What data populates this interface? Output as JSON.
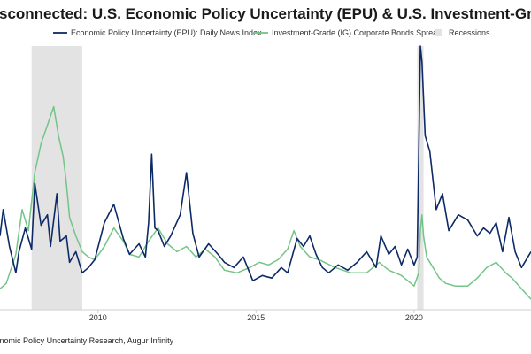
{
  "chart_data": {
    "type": "line",
    "title": "Disconnected: U.S. Economic Policy Uncertainty (EPU) & U.S. Investment-Grade (IG) Corporate Bonds Spread",
    "source": "Source: Bloomberg, Economic Policy Uncertainty Research, Augur Infinity",
    "xlabel": "",
    "ylabel": "",
    "xlim": [
      2006.9,
      2023.7
    ],
    "ylim": [
      0,
      100
    ],
    "y_scale": "normalized index (no visible axis)",
    "x_ticks": [
      "2010",
      "2015",
      "2020"
    ],
    "x_tick_values": [
      2010,
      2015,
      2020
    ],
    "legend": {
      "placement": "top-center",
      "entries": [
        {
          "name": "Economic Policy Uncertainty (EPU): Daily News Index",
          "color": "#0d2a66",
          "kind": "line"
        },
        {
          "name": "Investment-Grade (IG) Corporate Bonds Spread",
          "color": "#74c487",
          "kind": "line"
        },
        {
          "name": "Recessions",
          "color": "#e3e3e3",
          "kind": "box"
        }
      ]
    },
    "recessions": [
      {
        "start": 2007.9,
        "end": 2009.5
      },
      {
        "start": 2020.1,
        "end": 2020.3
      }
    ],
    "series": [
      {
        "name": "Economic Policy Uncertainty (EPU): Daily News Index",
        "color": "#0d2a66",
        "x": [
          2006.9,
          2007.0,
          2007.2,
          2007.4,
          2007.5,
          2007.7,
          2007.9,
          2008.0,
          2008.2,
          2008.4,
          2008.5,
          2008.7,
          2008.8,
          2009.0,
          2009.1,
          2009.3,
          2009.5,
          2009.7,
          2009.9,
          2010.2,
          2010.5,
          2010.8,
          2011.0,
          2011.3,
          2011.5,
          2011.6,
          2011.7,
          2011.8,
          2011.9,
          2012.1,
          2012.3,
          2012.6,
          2012.8,
          2013.0,
          2013.2,
          2013.5,
          2013.8,
          2014.0,
          2014.3,
          2014.6,
          2014.9,
          2015.2,
          2015.5,
          2015.8,
          2016.0,
          2016.3,
          2016.5,
          2016.7,
          2016.9,
          2017.1,
          2017.3,
          2017.6,
          2017.9,
          2018.2,
          2018.5,
          2018.8,
          2018.95,
          2019.2,
          2019.4,
          2019.6,
          2019.8,
          2020.0,
          2020.1,
          2020.2,
          2020.25,
          2020.35,
          2020.5,
          2020.7,
          2020.9,
          2021.1,
          2021.4,
          2021.7,
          2022.0,
          2022.2,
          2022.4,
          2022.6,
          2022.8,
          2023.0,
          2023.2,
          2023.4,
          2023.7
        ],
        "values": [
          28,
          38,
          24,
          14,
          22,
          31,
          23,
          48,
          32,
          36,
          24,
          44,
          26,
          28,
          18,
          22,
          14,
          16,
          19,
          33,
          40,
          27,
          21,
          25,
          20,
          33,
          59,
          31,
          30,
          24,
          28,
          36,
          52,
          29,
          20,
          25,
          21,
          18,
          16,
          20,
          11,
          13,
          12,
          16,
          14,
          27,
          24,
          28,
          21,
          16,
          14,
          17,
          15,
          18,
          22,
          16,
          28,
          21,
          24,
          17,
          23,
          17,
          20,
          100,
          94,
          66,
          60,
          38,
          44,
          30,
          36,
          34,
          28,
          31,
          29,
          33,
          22,
          35,
          22,
          16,
          22
        ]
      },
      {
        "name": "Investment-Grade (IG) Corporate Bonds Spread",
        "color": "#74c487",
        "x": [
          2006.9,
          2007.1,
          2007.4,
          2007.6,
          2007.8,
          2008.0,
          2008.2,
          2008.4,
          2008.6,
          2008.75,
          2008.9,
          2009.0,
          2009.1,
          2009.3,
          2009.5,
          2009.7,
          2009.9,
          2010.2,
          2010.5,
          2010.8,
          2011.0,
          2011.3,
          2011.6,
          2011.9,
          2012.2,
          2012.5,
          2012.8,
          2013.1,
          2013.4,
          2013.7,
          2014.0,
          2014.4,
          2014.8,
          2015.1,
          2015.4,
          2015.7,
          2016.0,
          2016.2,
          2016.4,
          2016.7,
          2017.0,
          2017.5,
          2018.0,
          2018.5,
          2018.9,
          2019.2,
          2019.6,
          2019.9,
          2020.0,
          2020.15,
          2020.2,
          2020.25,
          2020.3,
          2020.4,
          2020.6,
          2020.8,
          2021.0,
          2021.3,
          2021.7,
          2022.0,
          2022.3,
          2022.6,
          2022.9,
          2023.1,
          2023.4,
          2023.7
        ],
        "values": [
          8,
          10,
          21,
          38,
          30,
          52,
          63,
          70,
          77,
          66,
          58,
          48,
          35,
          28,
          22,
          20,
          19,
          24,
          31,
          26,
          21,
          20,
          26,
          31,
          25,
          22,
          24,
          20,
          23,
          20,
          15,
          14,
          16,
          18,
          17,
          19,
          23,
          30,
          24,
          20,
          19,
          16,
          14,
          14,
          18,
          15,
          13,
          10,
          9,
          14,
          30,
          36,
          28,
          20,
          16,
          12,
          10,
          9,
          9,
          12,
          16,
          18,
          14,
          12,
          8,
          4
        ]
      }
    ]
  }
}
